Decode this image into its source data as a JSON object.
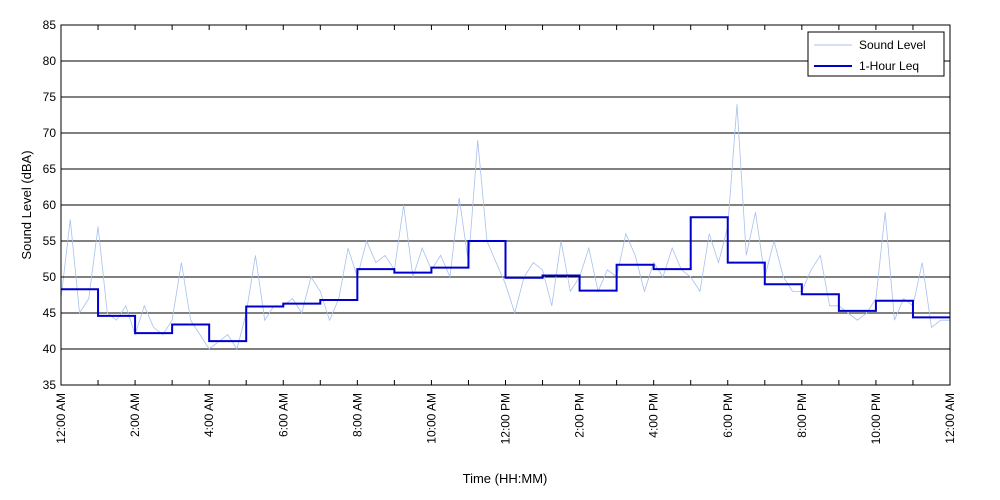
{
  "chart_data": {
    "type": "line",
    "title": "",
    "xlabel": "Time (HH:MM)",
    "ylabel": "Sound Level (dBA)",
    "xlim": [
      0,
      24
    ],
    "ylim": [
      35,
      85
    ],
    "y_ticks": [
      35,
      40,
      45,
      50,
      55,
      60,
      65,
      70,
      75,
      80,
      85
    ],
    "x_ticks": [
      {
        "hour": 0,
        "label": "12:00 AM"
      },
      {
        "hour": 2,
        "label": "2:00 AM"
      },
      {
        "hour": 4,
        "label": "4:00 AM"
      },
      {
        "hour": 6,
        "label": "6:00 AM"
      },
      {
        "hour": 8,
        "label": "8:00 AM"
      },
      {
        "hour": 10,
        "label": "10:00 AM"
      },
      {
        "hour": 12,
        "label": "12:00 PM"
      },
      {
        "hour": 14,
        "label": "2:00 PM"
      },
      {
        "hour": 16,
        "label": "4:00 PM"
      },
      {
        "hour": 18,
        "label": "6:00 PM"
      },
      {
        "hour": 20,
        "label": "8:00 PM"
      },
      {
        "hour": 22,
        "label": "10:00 PM"
      },
      {
        "hour": 24,
        "label": "12:00 AM"
      }
    ],
    "minor_x_ticks": [
      1,
      3,
      5,
      7,
      9,
      11,
      13,
      15,
      17,
      19,
      21,
      23
    ],
    "grid": "horizontal",
    "legend": "top-right",
    "series": [
      {
        "name": "Sound Level",
        "color": "#a8c0ee",
        "x_unit": "hour",
        "x": [
          0.0,
          0.25,
          0.5,
          0.75,
          1.0,
          1.25,
          1.5,
          1.75,
          2.0,
          2.25,
          2.5,
          2.75,
          3.0,
          3.25,
          3.5,
          3.75,
          4.0,
          4.25,
          4.5,
          4.75,
          5.0,
          5.25,
          5.5,
          5.75,
          6.0,
          6.25,
          6.5,
          6.75,
          7.0,
          7.25,
          7.5,
          7.75,
          8.0,
          8.25,
          8.5,
          8.75,
          9.0,
          9.25,
          9.5,
          9.75,
          10.0,
          10.25,
          10.5,
          10.75,
          11.0,
          11.25,
          11.5,
          11.75,
          12.0,
          12.25,
          12.5,
          12.75,
          13.0,
          13.25,
          13.5,
          13.75,
          14.0,
          14.25,
          14.5,
          14.75,
          15.0,
          15.25,
          15.5,
          15.75,
          16.0,
          16.25,
          16.5,
          16.75,
          17.0,
          17.25,
          17.5,
          17.75,
          18.0,
          18.25,
          18.5,
          18.75,
          19.0,
          19.25,
          19.5,
          19.75,
          20.0,
          20.25,
          20.5,
          20.75,
          21.0,
          21.25,
          21.5,
          21.75,
          22.0,
          22.25,
          22.5,
          22.75,
          23.0,
          23.25,
          23.5,
          23.75,
          24.0
        ],
        "values": [
          47,
          58,
          45,
          47,
          57,
          45,
          44,
          46,
          42,
          46,
          43,
          42,
          44,
          52,
          44,
          42,
          40,
          41,
          42,
          40,
          45,
          53,
          44,
          46,
          46,
          47,
          45,
          50,
          48,
          44,
          47,
          54,
          50,
          55,
          52,
          53,
          51,
          60,
          50,
          54,
          51,
          53,
          50,
          61,
          52,
          69,
          55,
          52,
          49,
          45,
          50,
          52,
          51,
          46,
          55,
          48,
          50,
          54,
          48,
          51,
          50,
          56,
          53,
          48,
          52,
          50,
          54,
          51,
          50,
          48,
          56,
          52,
          57,
          74,
          53,
          59,
          50,
          55,
          50,
          48,
          48,
          51,
          53,
          46,
          46,
          45,
          44,
          45,
          47,
          59,
          44,
          47,
          46,
          52,
          43,
          44,
          44
        ]
      },
      {
        "name": "1-Hour Leq",
        "color": "#0000cc",
        "step": "post",
        "x_unit": "hour",
        "x": [
          0,
          1,
          2,
          3,
          4,
          5,
          6,
          7,
          8,
          9,
          10,
          11,
          12,
          13,
          14,
          15,
          16,
          17,
          18,
          19,
          20,
          21,
          22,
          23
        ],
        "values": [
          48.3,
          44.6,
          42.2,
          43.4,
          41.1,
          45.9,
          46.3,
          46.8,
          51.1,
          50.6,
          51.3,
          55.0,
          49.9,
          50.2,
          48.1,
          51.7,
          51.1,
          58.3,
          52.0,
          49.0,
          47.6,
          45.3,
          46.7,
          44.4
        ]
      }
    ]
  }
}
